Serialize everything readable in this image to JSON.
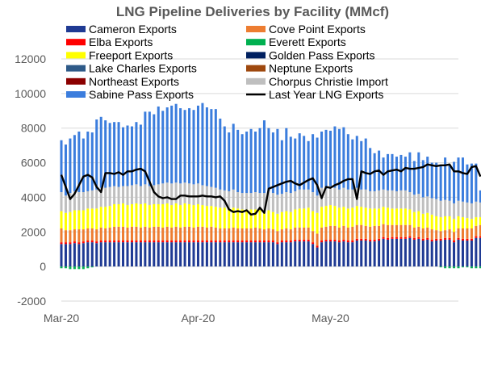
{
  "chart_data": {
    "type": "bar",
    "title": "LNG Pipeline Deliveries by Facility (MMcf)",
    "ylim": [
      -2000,
      12000
    ],
    "yticks": [
      -2000,
      0,
      2000,
      4000,
      6000,
      8000,
      10000,
      12000
    ],
    "xticks": [
      {
        "label": "Mar-20",
        "day": 1
      },
      {
        "label": "Apr-20",
        "day": 32
      },
      {
        "label": "May-20",
        "day": 62
      }
    ],
    "grid": "horizontal",
    "legend_position": "top",
    "day_range": [
      1,
      91
    ],
    "stack_order": [
      "Everett Exports",
      "Cameron Exports",
      "Elba Exports",
      "Cove Point Exports",
      "Freeport Exports",
      "Lake Charles Exports",
      "Northeast Exports",
      "Neptune Exports",
      "Golden Pass Exports",
      "Chorpus Christie Import",
      "Sabine Pass Exports"
    ],
    "series": [
      {
        "name": "Cameron Exports",
        "color": "#1F3A93",
        "values": [
          1300,
          1300,
          1300,
          1350,
          1300,
          1350,
          1400,
          1400,
          1350,
          1400,
          1400,
          1400,
          1400,
          1400,
          1400,
          1400,
          1400,
          1400,
          1400,
          1400,
          1400,
          1400,
          1400,
          1400,
          1400,
          1400,
          1400,
          1400,
          1400,
          1400,
          1400,
          1400,
          1400,
          1400,
          1400,
          1400,
          1400,
          1400,
          1400,
          1400,
          1400,
          1400,
          1400,
          1400,
          1400,
          1400,
          1400,
          1400,
          1400,
          1300,
          1400,
          1400,
          1400,
          1450,
          1450,
          1450,
          1450,
          1300,
          1100,
          1400,
          1450,
          1450,
          1450,
          1400,
          1450,
          1400,
          1400,
          1500,
          1500,
          1500,
          1450,
          1450,
          1500,
          1600,
          1550,
          1600,
          1600,
          1600,
          1600,
          1650,
          1550,
          1600,
          1500,
          1550,
          1450,
          1500,
          1500,
          1550,
          1550,
          1400,
          1550,
          1500,
          1500,
          1500,
          1650,
          1650
        ]
      },
      {
        "name": "Cove Point Exports",
        "color": "#ED7D31",
        "values": [
          800,
          700,
          700,
          700,
          750,
          700,
          700,
          700,
          700,
          750,
          700,
          750,
          800,
          800,
          800,
          750,
          800,
          800,
          750,
          800,
          750,
          800,
          800,
          750,
          800,
          750,
          800,
          750,
          800,
          800,
          750,
          800,
          800,
          750,
          800,
          750,
          700,
          700,
          700,
          750,
          700,
          700,
          700,
          700,
          750,
          700,
          650,
          700,
          650,
          650,
          650,
          700,
          650,
          700,
          700,
          700,
          700,
          650,
          700,
          750,
          750,
          800,
          800,
          750,
          800,
          750,
          800,
          800,
          800,
          750,
          750,
          800,
          750,
          750,
          750,
          700,
          700,
          700,
          700,
          650,
          600,
          600,
          600,
          600,
          600,
          500,
          450,
          450,
          500,
          500,
          550,
          600,
          600,
          600,
          600,
          650
        ]
      },
      {
        "name": "Elba Exports",
        "color": "#FF0000",
        "values": [
          100,
          100,
          100,
          100,
          100,
          100,
          100,
          100,
          100,
          100,
          100,
          100,
          100,
          100,
          100,
          100,
          100,
          100,
          100,
          100,
          100,
          100,
          100,
          100,
          100,
          100,
          100,
          100,
          100,
          100,
          100,
          100,
          100,
          100,
          100,
          100,
          100,
          100,
          100,
          100,
          100,
          100,
          100,
          100,
          100,
          100,
          100,
          100,
          100,
          100,
          100,
          100,
          100,
          100,
          100,
          100,
          100,
          100,
          100,
          100,
          100,
          100,
          100,
          100,
          100,
          100,
          100,
          100,
          100,
          100,
          100,
          100,
          100,
          100,
          100,
          100,
          100,
          100,
          100,
          100,
          100,
          100,
          100,
          100,
          100,
          100,
          100,
          100,
          100,
          100,
          100,
          100,
          100,
          100,
          100,
          100
        ]
      },
      {
        "name": "Everett Exports",
        "color": "#00B050",
        "values": [
          -100,
          -100,
          -150,
          -150,
          -150,
          -150,
          -100,
          -50,
          0,
          0,
          0,
          0,
          0,
          0,
          0,
          0,
          0,
          0,
          0,
          0,
          0,
          0,
          0,
          0,
          0,
          0,
          0,
          0,
          0,
          0,
          0,
          0,
          0,
          0,
          0,
          0,
          0,
          0,
          0,
          0,
          0,
          0,
          0,
          0,
          0,
          0,
          0,
          0,
          0,
          0,
          0,
          0,
          0,
          0,
          0,
          0,
          0,
          0,
          0,
          0,
          0,
          0,
          0,
          0,
          0,
          0,
          0,
          0,
          0,
          0,
          0,
          0,
          0,
          0,
          0,
          0,
          0,
          0,
          0,
          0,
          0,
          0,
          0,
          0,
          0,
          0,
          -50,
          -100,
          -100,
          -100,
          -100,
          -50,
          -50,
          -100,
          -100,
          -100
        ]
      },
      {
        "name": "Freeport Exports",
        "color": "#FFFF00",
        "values": [
          1000,
          1000,
          1050,
          1100,
          1100,
          1100,
          1150,
          1150,
          1200,
          1200,
          1250,
          1250,
          1300,
          1300,
          1350,
          1300,
          1300,
          1350,
          1350,
          1350,
          1300,
          1300,
          1300,
          1350,
          1350,
          1300,
          1350,
          1300,
          1350,
          1300,
          1300,
          1300,
          1250,
          1250,
          1200,
          1200,
          1200,
          1200,
          1150,
          1150,
          1150,
          1100,
          1100,
          1100,
          1050,
          1050,
          1050,
          1050,
          1000,
          1000,
          1000,
          1000,
          1000,
          1050,
          1100,
          1100,
          1150,
          1150,
          1200,
          1200,
          1200,
          1200,
          1150,
          1150,
          1100,
          1100,
          1100,
          1100,
          1050,
          1050,
          1050,
          1000,
          1000,
          1000,
          1000,
          950,
          950,
          950,
          950,
          900,
          900,
          900,
          850,
          850,
          850,
          800,
          800,
          800,
          750,
          750,
          700,
          650,
          600,
          550,
          500,
          450
        ]
      },
      {
        "name": "Golden Pass Exports",
        "color": "#002060",
        "values": [
          0,
          0,
          0,
          0,
          0,
          0,
          0,
          0,
          0,
          0,
          0,
          0,
          0,
          0,
          0,
          0,
          0,
          0,
          0,
          0,
          0,
          0,
          0,
          0,
          0,
          0,
          0,
          0,
          0,
          0,
          0,
          0,
          0,
          0,
          0,
          0,
          0,
          0,
          0,
          0,
          0,
          0,
          0,
          0,
          0,
          0,
          0,
          0,
          0,
          0,
          0,
          0,
          0,
          0,
          0,
          0,
          0,
          0,
          0,
          0,
          0,
          0,
          0,
          0,
          0,
          0,
          0,
          0,
          0,
          0,
          0,
          0,
          0,
          0,
          0,
          0,
          0,
          0,
          0,
          0,
          0,
          0,
          0,
          0,
          0,
          0,
          0,
          0,
          0,
          0,
          0,
          0,
          0,
          0,
          0,
          0
        ]
      },
      {
        "name": "Lake Charles Exports",
        "color": "#2E5A88",
        "values": [
          0,
          0,
          0,
          0,
          0,
          0,
          0,
          0,
          0,
          0,
          0,
          0,
          0,
          0,
          0,
          0,
          0,
          0,
          0,
          0,
          0,
          0,
          0,
          0,
          0,
          0,
          0,
          0,
          0,
          0,
          0,
          0,
          0,
          0,
          0,
          0,
          0,
          0,
          0,
          0,
          0,
          0,
          0,
          0,
          0,
          0,
          0,
          0,
          0,
          0,
          0,
          0,
          0,
          0,
          0,
          0,
          0,
          0,
          0,
          0,
          0,
          0,
          0,
          0,
          0,
          0,
          0,
          0,
          0,
          0,
          0,
          0,
          0,
          0,
          0,
          0,
          0,
          0,
          0,
          0,
          0,
          0,
          0,
          0,
          0,
          0,
          0,
          0,
          0,
          0,
          0,
          0,
          0,
          0,
          0,
          0
        ]
      },
      {
        "name": "Neptune Exports",
        "color": "#9E480E",
        "values": [
          0,
          0,
          0,
          0,
          0,
          0,
          0,
          0,
          0,
          0,
          0,
          0,
          0,
          0,
          0,
          0,
          0,
          0,
          0,
          0,
          0,
          0,
          0,
          0,
          0,
          0,
          0,
          0,
          0,
          0,
          0,
          0,
          0,
          0,
          0,
          0,
          0,
          0,
          0,
          0,
          0,
          0,
          0,
          0,
          0,
          0,
          0,
          0,
          0,
          0,
          0,
          0,
          0,
          0,
          0,
          0,
          0,
          0,
          0,
          0,
          0,
          0,
          0,
          0,
          0,
          0,
          0,
          0,
          0,
          0,
          0,
          0,
          0,
          0,
          0,
          0,
          0,
          0,
          0,
          0,
          0,
          0,
          0,
          0,
          0,
          0,
          0,
          0,
          0,
          0,
          0,
          0,
          0,
          0,
          0,
          0
        ]
      },
      {
        "name": "Northeast Exports",
        "color": "#8B0000",
        "values": [
          0,
          0,
          0,
          0,
          0,
          0,
          0,
          0,
          0,
          0,
          0,
          0,
          0,
          0,
          0,
          0,
          0,
          0,
          0,
          0,
          0,
          0,
          0,
          0,
          0,
          0,
          0,
          0,
          0,
          0,
          0,
          0,
          0,
          0,
          0,
          0,
          0,
          0,
          0,
          0,
          0,
          0,
          0,
          0,
          0,
          0,
          0,
          0,
          0,
          0,
          0,
          0,
          0,
          0,
          0,
          0,
          0,
          0,
          0,
          0,
          0,
          0,
          0,
          0,
          0,
          0,
          0,
          0,
          0,
          0,
          0,
          0,
          0,
          0,
          0,
          0,
          0,
          0,
          0,
          0,
          0,
          0,
          0,
          0,
          0,
          0,
          0,
          0,
          0,
          0,
          0,
          0,
          0,
          0,
          0,
          0
        ]
      },
      {
        "name": "Chorpus Christie Import",
        "color": "#BFBFBF",
        "values": [
          1100,
          1000,
          1100,
          1100,
          1050,
          1050,
          1000,
          1050,
          1100,
          1100,
          1100,
          1100,
          1050,
          1000,
          1000,
          1100,
          1100,
          1100,
          1050,
          1100,
          1100,
          1100,
          1150,
          1200,
          1200,
          1250,
          1200,
          1250,
          1200,
          1200,
          1200,
          1200,
          1150,
          1150,
          1100,
          1100,
          1050,
          1000,
          1000,
          1050,
          950,
          950,
          950,
          950,
          1000,
          1000,
          1050,
          1100,
          1100,
          1100,
          1050,
          1100,
          1100,
          1050,
          1100,
          1100,
          1050,
          1100,
          1000,
          1100,
          1000,
          1100,
          1050,
          1050,
          1100,
          1100,
          1050,
          1050,
          1000,
          1050,
          1000,
          1000,
          1050,
          1000,
          1000,
          1050,
          1000,
          1050,
          1050,
          1000,
          1000,
          1000,
          950,
          950,
          950,
          1000,
          950,
          950,
          900,
          900,
          900,
          900,
          900,
          900,
          900,
          850
        ]
      },
      {
        "name": "Sabine Pass Exports",
        "color": "#3B7DDD",
        "values": [
          3000,
          2950,
          3150,
          3250,
          3500,
          3100,
          3450,
          3350,
          4050,
          4100,
          3900,
          3700,
          3700,
          3750,
          3400,
          3500,
          3400,
          3600,
          3550,
          4200,
          4300,
          4100,
          4500,
          4200,
          4350,
          4500,
          4550,
          4350,
          4200,
          4350,
          4300,
          4500,
          4750,
          4550,
          4500,
          4550,
          4100,
          3700,
          3400,
          3800,
          3600,
          3400,
          3550,
          3700,
          3500,
          3750,
          4200,
          3650,
          3500,
          3800,
          3100,
          3700,
          3250,
          3050,
          3250,
          3100,
          2800,
          3350,
          3350,
          3250,
          3400,
          3200,
          3550,
          3500,
          3500,
          3200,
          2900,
          3000,
          2800,
          2950,
          2500,
          2200,
          2300,
          1850,
          2100,
          2100,
          2000,
          2050,
          1950,
          2300,
          1950,
          2400,
          2150,
          2300,
          2050,
          2100,
          2000,
          2450,
          2050,
          2400,
          2500,
          2550,
          2200,
          2300,
          2200,
          700
        ]
      },
      {
        "name": "Last Year LNG Exports",
        "color": "#000000",
        "line": true,
        "values": [
          5300,
          4600,
          3900,
          4200,
          4700,
          5200,
          5300,
          5150,
          4600,
          4300,
          5400,
          5400,
          5350,
          5450,
          5300,
          5500,
          5500,
          5600,
          5650,
          5500,
          4900,
          4300,
          4050,
          3950,
          4000,
          3900,
          3900,
          4100,
          4100,
          4050,
          4050,
          4050,
          4100,
          4050,
          4050,
          4000,
          4050,
          3800,
          3300,
          3150,
          3200,
          3150,
          3250,
          3000,
          3050,
          3400,
          3100,
          4500,
          4600,
          4700,
          4800,
          4900,
          4950,
          4800,
          4700,
          4850,
          5000,
          5100,
          4700,
          3950,
          4600,
          4550,
          4700,
          4800,
          4950,
          5050,
          5050,
          3900,
          5500,
          5400,
          5350,
          5500,
          5550,
          5300,
          5500,
          5550,
          5600,
          5500,
          5700,
          5650,
          5650,
          5700,
          5750,
          5900,
          5850,
          5800,
          5850,
          5850,
          5900,
          5500,
          5500,
          5400,
          5350,
          5750,
          5800,
          5200
        ]
      }
    ]
  }
}
